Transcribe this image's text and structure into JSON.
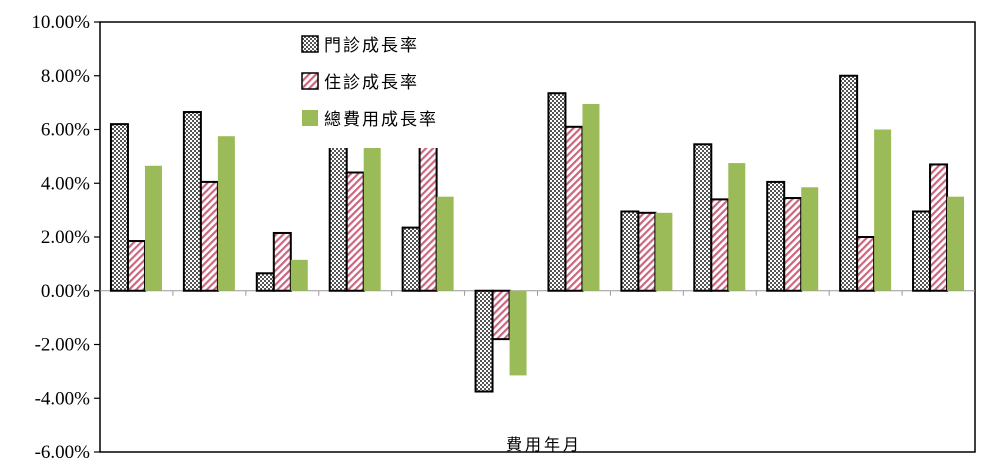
{
  "chart_data": {
    "type": "bar",
    "xlabel": "費用年月",
    "ylabel": "",
    "ylim": [
      -6,
      10
    ],
    "y_ticks": [
      10,
      8,
      6,
      4,
      2,
      0,
      -2,
      -4,
      -6
    ],
    "y_tick_labels": [
      "10.00%",
      "8.00%",
      "6.00%",
      "4.00%",
      "2.00%",
      "0.00%",
      "-2.00%",
      "-4.00%",
      "-6.00%"
    ],
    "legend_position": "top-center",
    "grid": false,
    "category_count": 12,
    "series": [
      {
        "name": "門診成長率",
        "pattern": "crosshatch",
        "color": "#555555",
        "values": [
          6.2,
          6.65,
          0.65,
          5.4,
          2.35,
          -3.75,
          7.35,
          2.95,
          5.45,
          4.05,
          8.0,
          2.95
        ]
      },
      {
        "name": "住診成長率",
        "pattern": "diagonal",
        "color": "#cc6680",
        "values": [
          1.85,
          4.05,
          2.15,
          4.4,
          5.4,
          -1.8,
          6.1,
          2.9,
          3.4,
          3.45,
          2.0,
          4.7
        ]
      },
      {
        "name": "總費用成長率",
        "pattern": "solid",
        "color": "#9bbb59",
        "values": [
          4.65,
          5.75,
          1.15,
          5.4,
          3.5,
          -3.15,
          6.95,
          2.9,
          4.75,
          3.85,
          6.0,
          3.5
        ]
      }
    ]
  }
}
